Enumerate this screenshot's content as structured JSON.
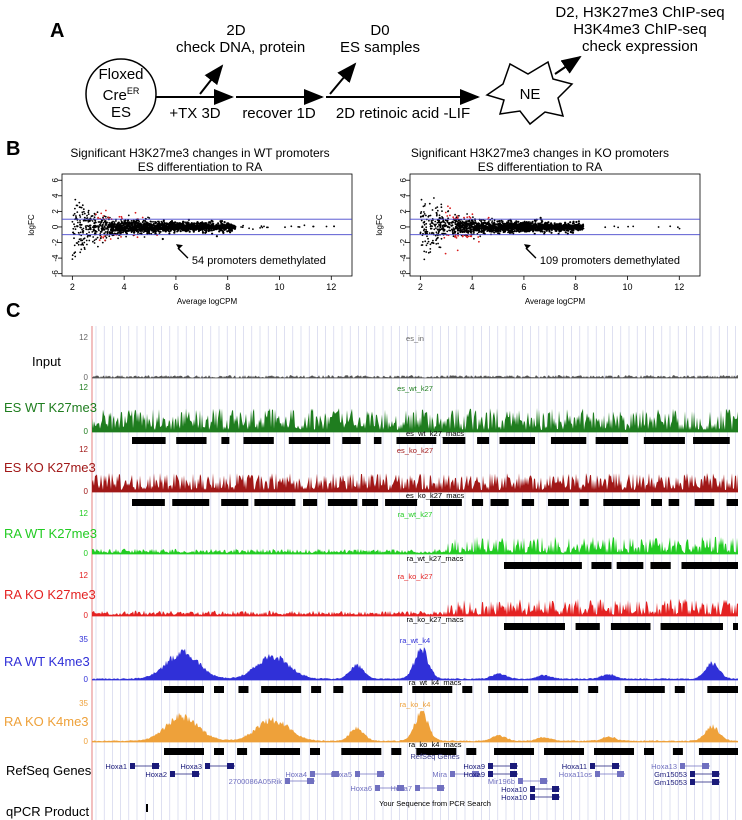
{
  "panel_a": {
    "letter": "A",
    "start_cell": [
      "Floxed",
      "Cre",
      "ER",
      "ES"
    ],
    "arrows": [
      "+TX 3D",
      "recover 1D",
      "2D retinoic acid -LIF"
    ],
    "branch_2d": [
      "2D",
      "check DNA, protein"
    ],
    "branch_d0": [
      "D0",
      "ES samples"
    ],
    "end_cell": "NE",
    "branch_d2": [
      "D2, H3K27me3 ChIP-seq",
      "H3K4me3 ChIP-seq",
      "check expression"
    ]
  },
  "panel_b": {
    "letter": "B",
    "annotation_color": "#d81e1e",
    "chart_data": [
      {
        "type": "scatter",
        "title": "Significant H3K27me3 changes in WT promoters",
        "subtitle": "ES differentiation to RA",
        "xlabel": "Average logCPM",
        "ylabel": "logFC",
        "xticks": [
          2,
          4,
          6,
          8,
          10,
          12
        ],
        "yticks": [
          -6,
          -4,
          -2,
          0,
          2,
          4,
          6
        ],
        "xlim": [
          1.6,
          12.8
        ],
        "ylim": [
          -6.3,
          6.8
        ],
        "threshold_lines": [
          1,
          -1
        ],
        "annotation": "54 promoters demethylated",
        "n_significant_down": 54
      },
      {
        "type": "scatter",
        "title": "Significant H3K27me3 changes in KO promoters",
        "subtitle": "ES differentiation to RA",
        "xlabel": "Average logCPM",
        "ylabel": "logFC",
        "xticks": [
          2,
          4,
          6,
          8,
          10,
          12
        ],
        "yticks": [
          -6,
          -4,
          -2,
          0,
          2,
          4,
          6
        ],
        "xlim": [
          1.6,
          12.8
        ],
        "ylim": [
          -6.3,
          6.8
        ],
        "threshold_lines": [
          1,
          -1
        ],
        "annotation": "109 promoters demethylated",
        "n_significant_down": 109
      }
    ]
  },
  "panel_c": {
    "letter": "C",
    "tracks": [
      {
        "label": "Input",
        "name": "es_in",
        "max": "12",
        "zero": "0",
        "color": "#555555",
        "density": 0.08,
        "peak_region": "none",
        "macs": ""
      },
      {
        "label": "ES WT K27me3",
        "name": "es_wt_k27",
        "max": "12",
        "zero": "0",
        "color": "#1f7d1f",
        "density": 0.55,
        "peak_region": "broad",
        "macs": "es_wt_k27_macs"
      },
      {
        "label": "ES KO K27me3",
        "name": "es_ko_k27",
        "max": "12",
        "zero": "0",
        "color": "#a11818",
        "density": 0.45,
        "peak_region": "broad",
        "macs": "es_ko_k27_macs"
      },
      {
        "label": "RA WT K27me3",
        "name": "ra_wt_k27",
        "max": "12",
        "zero": "0",
        "color": "#22cc22",
        "density": 0.35,
        "peak_region": "right",
        "macs": "ra_wt_k27_macs"
      },
      {
        "label": "RA KO K27me3",
        "name": "ra_ko_k27",
        "max": "12",
        "zero": "0",
        "color": "#e42222",
        "density": 0.38,
        "peak_region": "right",
        "macs": "ra_ko_k27_macs"
      },
      {
        "label": "RA WT K4me3",
        "name": "ra_wt_k4",
        "max": "35",
        "zero": "0",
        "color": "#3030d8",
        "density": 0.0,
        "peak_region": "peaks",
        "macs": "ra_wt_k4_macs"
      },
      {
        "label": "RA KO K4me3",
        "name": "ra_ko_k4",
        "max": "35",
        "zero": "0",
        "color": "#eea13a",
        "density": 0.0,
        "peak_region": "peaks",
        "macs": "ra_ko_k4_macs"
      }
    ],
    "refseq_label": "RefSeq Genes",
    "refseq_title": "RefSeq Genes",
    "qpcr_label": "qPCR Product",
    "qpcr_title": "Your Sequence from PCR Search",
    "genes": [
      "Hoxa1",
      "Hoxa2",
      "Hoxa3",
      "Hoxa4",
      "2700086A05Rik",
      "Hoxa5",
      "Hoxa6",
      "Hoxa7",
      "Mira",
      "Hoxa9",
      "Hoxa9",
      "Mir196b",
      "Hoxa10",
      "Hoxa10",
      "Hoxa11",
      "Hoxa11os",
      "Hoxa13",
      "Gm15053",
      "Gm15053"
    ]
  }
}
